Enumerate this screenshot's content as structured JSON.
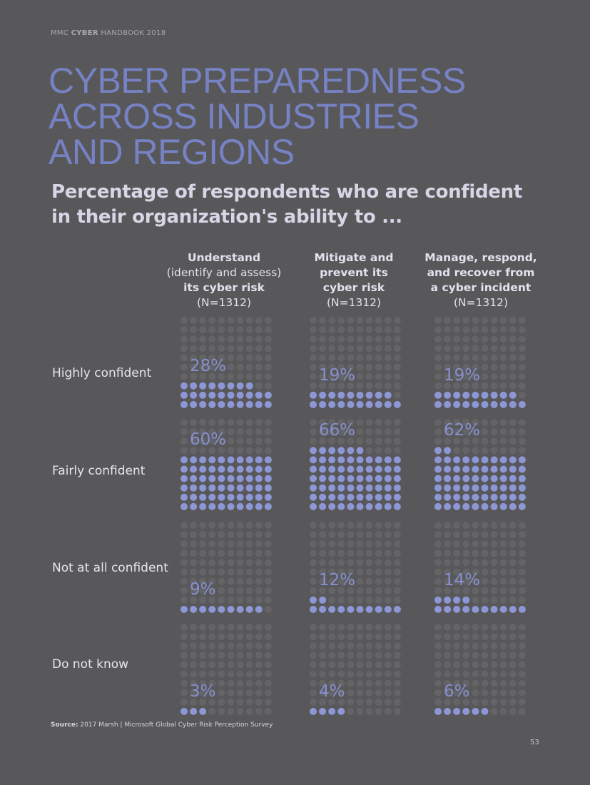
{
  "header": {
    "running_prefix": "MMC ",
    "running_bold": "CYBER",
    "running_suffix": " HANDBOOK 2018"
  },
  "title_lines": [
    "CYBER PREPAREDNESS",
    "ACROSS INDUSTRIES",
    "AND REGIONS"
  ],
  "subtitle_lines": [
    "Percentage of respondents who are confident",
    "in their organization's ability to ..."
  ],
  "columns": [
    {
      "lines": [
        {
          "text": "Understand",
          "bold": true
        },
        {
          "text": "(identify and assess)",
          "bold": false
        },
        {
          "text": "its cyber risk",
          "bold": true
        },
        {
          "text": "(N=1312)",
          "bold": false
        }
      ]
    },
    {
      "lines": [
        {
          "text": "Mitigate and",
          "bold": true
        },
        {
          "text": "prevent its",
          "bold": true
        },
        {
          "text": "cyber risk",
          "bold": true
        },
        {
          "text": "(N=1312)",
          "bold": false
        }
      ]
    },
    {
      "lines": [
        {
          "text": "Manage, respond,",
          "bold": true
        },
        {
          "text": "and recover from",
          "bold": true
        },
        {
          "text": "a cyber incident",
          "bold": true
        },
        {
          "text": "(N=1312)",
          "bold": false
        }
      ]
    }
  ],
  "chart_data": {
    "type": "waffle",
    "unit_per_dot": "1%",
    "rows": [
      "Highly confident",
      "Fairly confident",
      "Not at all confident",
      "Do not know"
    ],
    "series": [
      {
        "name": "Understand (identify and assess) its cyber risk (N=1312)",
        "values": [
          28,
          60,
          9,
          3
        ]
      },
      {
        "name": "Mitigate and prevent its cyber risk (N=1312)",
        "values": [
          19,
          66,
          12,
          4
        ]
      },
      {
        "name": "Manage, respond, and recover from a cyber incident (N=1312)",
        "values": [
          19,
          62,
          14,
          6
        ]
      }
    ],
    "labels": [
      [
        "28%",
        "19%",
        "19%"
      ],
      [
        "60%",
        "66%",
        "62%"
      ],
      [
        "9%",
        "12%",
        "14%"
      ],
      [
        "3%",
        "4%",
        "6%"
      ]
    ]
  },
  "colors": {
    "background": "#58585a",
    "filled_dot": "#8e97d6",
    "empty_dot": "#646467",
    "title": "#7682c4",
    "pct_label": "#8790cf"
  },
  "source": {
    "label": "Source:",
    "text": " 2017 Marsh | Microsoft Global Cyber Risk Perception Survey"
  },
  "page_number": "53"
}
